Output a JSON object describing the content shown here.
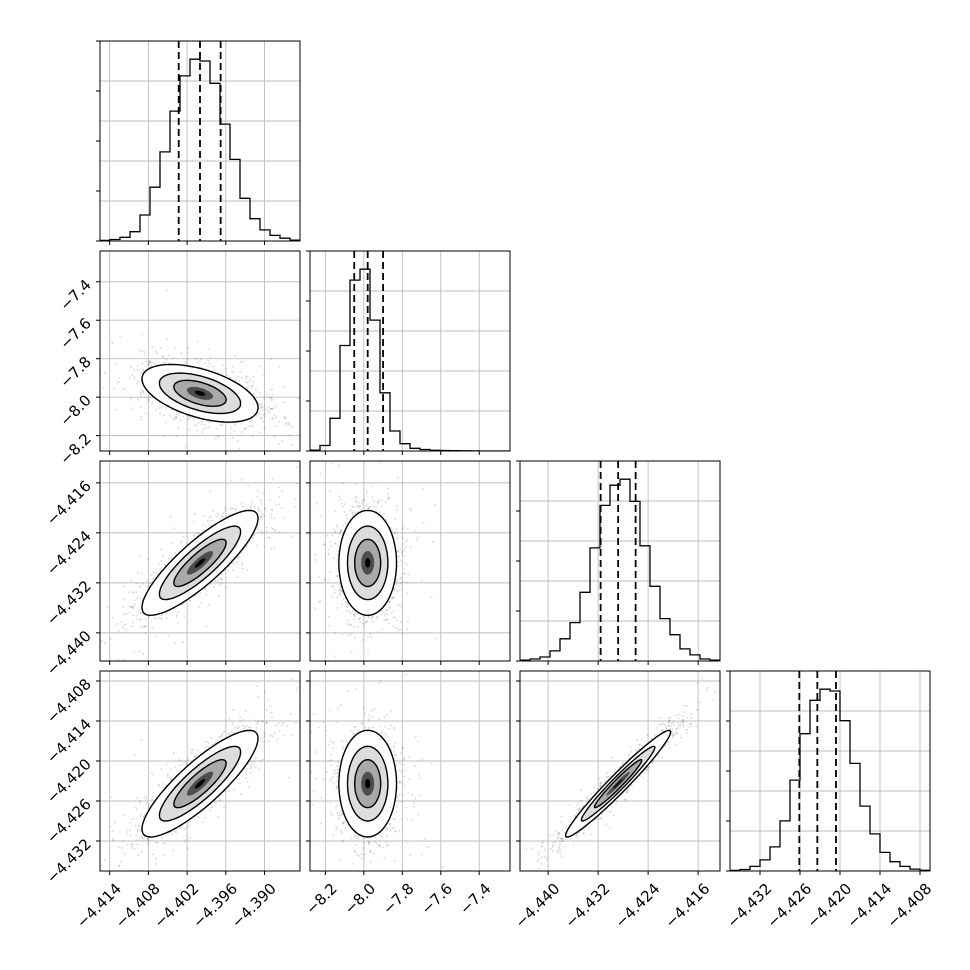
{
  "chart_data": {
    "type": "corner",
    "parameters": [
      {
        "range": [
          -4.4155,
          -4.3845
        ],
        "ticks": [
          -4.414,
          -4.408,
          -4.402,
          -4.396,
          -4.39
        ],
        "tick_labels": [
          "−4.414",
          "−4.408",
          "−4.402",
          "−4.396",
          "−4.390"
        ],
        "quantiles": [
          -4.4033,
          -4.4,
          -4.3968
        ],
        "hist_counts": [
          0.3,
          0.8,
          2,
          5,
          14,
          29,
          48,
          70,
          89,
          98,
          97,
          85,
          63,
          44,
          23,
          12,
          6,
          3,
          1.5,
          0.5
        ]
      },
      {
        "range": [
          -8.28,
          -7.24
        ],
        "ticks": [
          -8.2,
          -8.0,
          -7.8,
          -7.6,
          -7.4
        ],
        "tick_labels": [
          "−8.2",
          "−8.0",
          "−7.8",
          "−7.6",
          "−7.4"
        ],
        "quantiles": [
          -8.05,
          -7.98,
          -7.9
        ],
        "hist_counts": [
          0.5,
          3,
          18,
          58,
          94,
          100,
          72,
          32,
          11,
          4,
          1.5,
          0.8,
          0.4,
          0.3,
          0.2,
          0.1,
          0.05,
          0,
          0,
          0
        ]
      },
      {
        "range": [
          -4.4445,
          -4.4125
        ],
        "ticks": [
          -4.44,
          -4.432,
          -4.424,
          -4.416
        ],
        "tick_labels": [
          "−4.440",
          "−4.432",
          "−4.424",
          "−4.416"
        ],
        "quantiles": [
          -4.4316,
          -4.4288,
          -4.426
        ],
        "hist_counts": [
          0.4,
          1,
          2,
          5,
          11,
          19,
          34,
          56,
          77,
          87,
          90,
          79,
          57,
          37,
          21,
          13,
          6,
          3,
          1,
          0.4
        ]
      },
      {
        "range": [
          -4.4365,
          -4.4065
        ],
        "ticks": [
          -4.432,
          -4.426,
          -4.42,
          -4.414,
          -4.408
        ],
        "tick_labels": [
          "−4.432",
          "−4.426",
          "−4.420",
          "−4.414",
          "−4.408"
        ],
        "quantiles": [
          -4.4261,
          -4.4234,
          -4.4206
        ],
        "hist_counts": [
          0.3,
          0.8,
          2.5,
          6,
          13,
          27,
          49,
          74,
          92,
          98,
          97,
          81,
          58,
          35,
          20,
          10,
          5,
          2.5,
          1,
          0.4
        ]
      }
    ],
    "pair_estimates": {
      "1_0": {
        "mean": [
          -4.4,
          -7.98
        ],
        "sd": [
          0.0045,
          0.075
        ],
        "rho": -0.5
      },
      "2_0": {
        "mean": [
          -4.4,
          -4.4288
        ],
        "sd": [
          0.0045,
          0.0042
        ],
        "rho": 0.85
      },
      "2_1": {
        "mean": [
          -7.98,
          -4.4288
        ],
        "sd": [
          0.075,
          0.0042
        ],
        "rho": 0.0
      },
      "3_0": {
        "mean": [
          -4.4,
          -4.4234
        ],
        "sd": [
          0.0045,
          0.004
        ],
        "rho": 0.85
      },
      "3_1": {
        "mean": [
          -7.98,
          -4.4234
        ],
        "sd": [
          0.075,
          0.004
        ],
        "rho": 0.0
      },
      "3_2": {
        "mean": [
          -4.4288,
          -4.4234
        ],
        "sd": [
          0.0042,
          0.004
        ],
        "rho": 0.97
      }
    },
    "grid": true
  }
}
